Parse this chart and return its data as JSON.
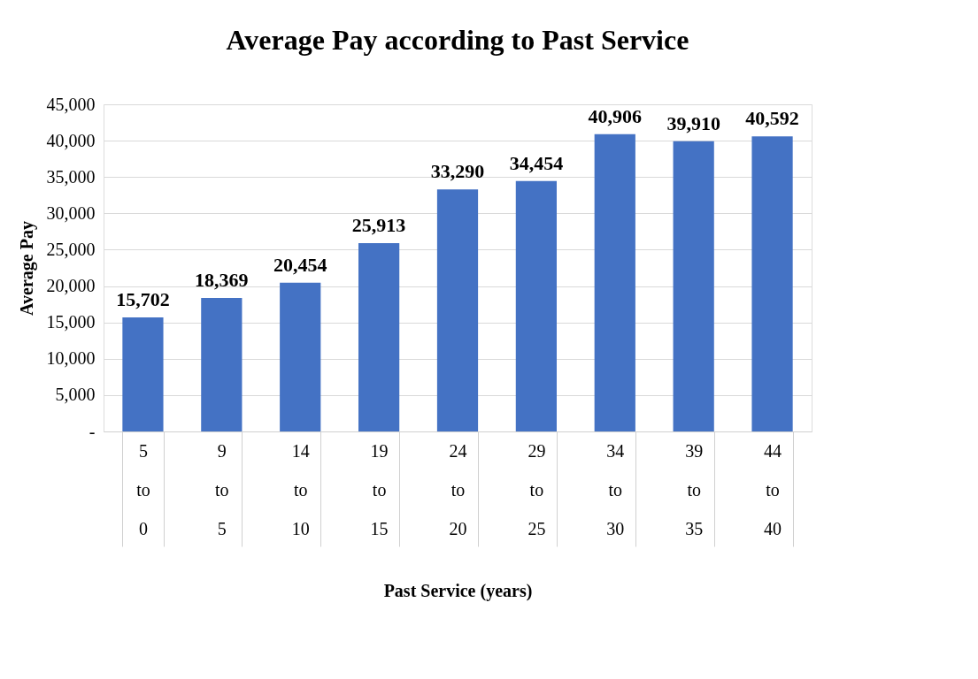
{
  "chart_data": {
    "type": "bar",
    "title": "Average Pay according to Past Service",
    "xlabel": "Past Service (years)",
    "ylabel": "Average Pay",
    "categories": [
      "5 to 0",
      "9 to 5",
      "14 to 10",
      "19 to 15",
      "24 to 20",
      "29 to 25",
      "34 to 30",
      "39 to 35",
      "44 to 40"
    ],
    "values": [
      15702,
      18369,
      20454,
      25913,
      33290,
      34454,
      40906,
      39910,
      40592
    ],
    "value_labels": [
      "15,702",
      "18,369",
      "20,454",
      "25,913",
      "33,290",
      "34,454",
      "40,906",
      "39,910",
      "40,592"
    ],
    "color": "#4472c4",
    "ylim": [
      0,
      45000
    ],
    "yticks": [
      {
        "value": 0,
        "label": "-"
      },
      {
        "value": 5000,
        "label": "5,000"
      },
      {
        "value": 10000,
        "label": "10,000"
      },
      {
        "value": 15000,
        "label": "15,000"
      },
      {
        "value": 20000,
        "label": "20,000"
      },
      {
        "value": 25000,
        "label": "25,000"
      },
      {
        "value": 30000,
        "label": "30,000"
      },
      {
        "value": 35000,
        "label": "35,000"
      },
      {
        "value": 40000,
        "label": "40,000"
      },
      {
        "value": 45000,
        "label": "45,000"
      }
    ],
    "grid": "y"
  }
}
